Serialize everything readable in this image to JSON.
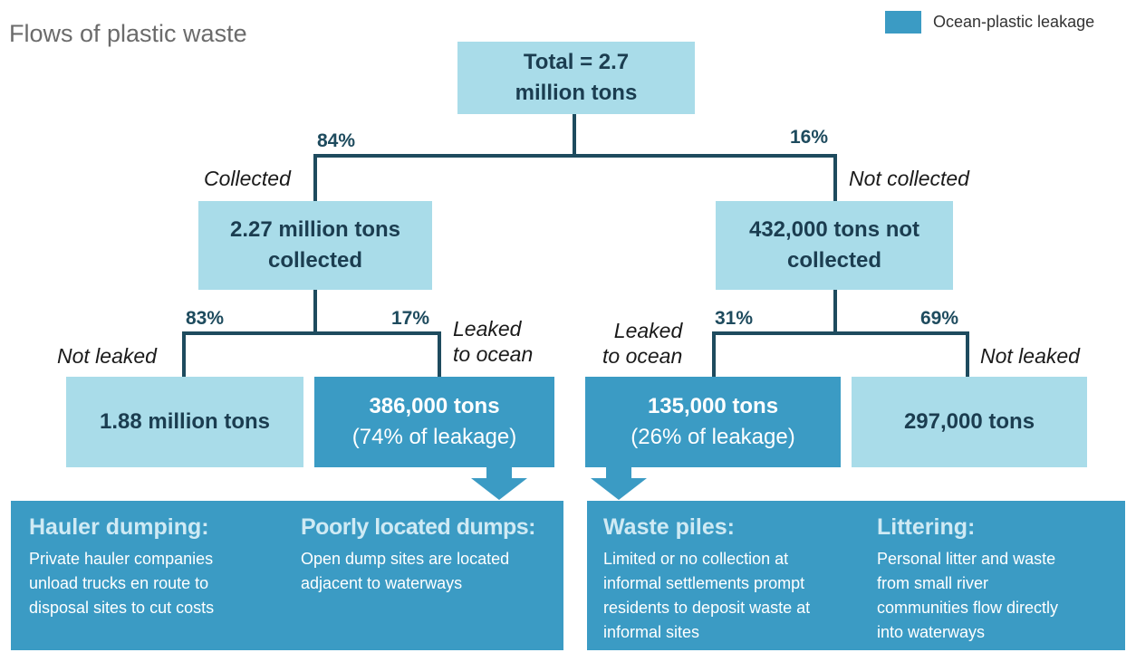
{
  "title": "Flows of plastic waste",
  "legend": {
    "label": "Ocean-plastic leakage",
    "color": "#3b9bc4"
  },
  "colors": {
    "light_box": "#a9dce9",
    "dark_box": "#3b9bc4",
    "line": "#1e4b5e"
  },
  "total": {
    "line1": "Total = 2.7",
    "line2": "million tons"
  },
  "collected": {
    "pct": "84%",
    "label": "Collected",
    "box": {
      "line1": "2.27 million tons",
      "line2": "collected"
    },
    "not_leaked": {
      "pct": "83%",
      "label": "Not leaked",
      "value": "1.88 million tons"
    },
    "leaked": {
      "pct": "17%",
      "label_line1": "Leaked",
      "label_line2": "to ocean",
      "line1": "386,000 tons",
      "line2": "(74% of leakage)"
    }
  },
  "not_collected": {
    "pct": "16%",
    "label": "Not collected",
    "box": {
      "line1": "432,000 tons not",
      "line2": "collected"
    },
    "leaked": {
      "pct": "31%",
      "label_line1": "Leaked",
      "label_line2": "to ocean",
      "line1": "135,000 tons",
      "line2": "(26% of leakage)"
    },
    "not_leaked": {
      "pct": "69%",
      "label": "Not leaked",
      "value": "297,000 tons"
    }
  },
  "causes": [
    {
      "title": "Hauler dumping:",
      "text": [
        "Private hauler companies",
        "unload trucks en route to",
        "disposal sites to cut costs"
      ]
    },
    {
      "title": "Poorly located dumps:",
      "text": [
        "Open dump sites are located",
        "adjacent to waterways"
      ]
    },
    {
      "title": "Waste piles:",
      "text": [
        "Limited or no collection at",
        "informal settlements prompt",
        "residents to deposit waste at",
        "informal sites"
      ]
    },
    {
      "title": "Littering:",
      "text": [
        "Personal litter and waste",
        "from small river",
        "communities flow directly",
        "into waterways"
      ]
    }
  ]
}
